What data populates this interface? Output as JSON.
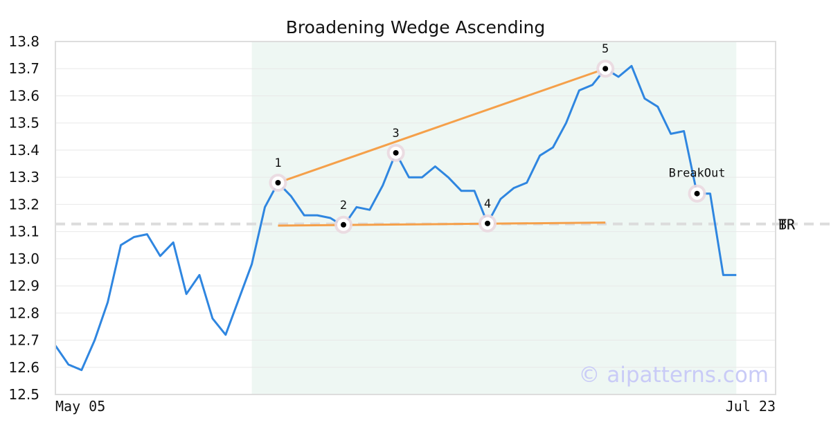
{
  "chart_data": {
    "type": "line",
    "title": "Broadening Wedge Ascending",
    "xlabel": "",
    "ylabel": "",
    "ylim": [
      12.5,
      13.8
    ],
    "yticks": [
      "12.5",
      "12.6",
      "12.7",
      "12.8",
      "12.9",
      "13.0",
      "13.1",
      "13.2",
      "13.3",
      "13.4",
      "13.5",
      "13.6",
      "13.7",
      "13.8"
    ],
    "x_tick_labels": [
      {
        "index": 0,
        "label": "May 05"
      },
      {
        "index": 54,
        "label": "Jul 23"
      }
    ],
    "x_count": 56,
    "series": [
      {
        "color": "#2f86e0",
        "values": [
          12.68,
          12.61,
          12.59,
          12.7,
          12.84,
          13.05,
          13.08,
          13.09,
          13.01,
          13.06,
          12.87,
          12.94,
          12.78,
          12.72,
          12.85,
          12.98,
          13.19,
          13.28,
          13.23,
          13.16,
          13.16,
          13.15,
          13.12,
          13.19,
          13.18,
          13.27,
          13.39,
          13.3,
          13.3,
          13.34,
          13.3,
          13.25,
          13.25,
          13.13,
          13.22,
          13.26,
          13.28,
          13.38,
          13.41,
          13.5,
          13.62,
          13.64,
          13.7,
          13.67,
          13.71,
          13.59,
          13.56,
          13.46,
          13.47,
          13.24,
          13.24,
          12.94,
          12.94
        ]
      }
    ],
    "pattern_region": {
      "x_start": 15,
      "x_end": 52,
      "color": "#eef7f3"
    },
    "pivots": [
      {
        "label": "1",
        "x": 17,
        "y": 13.28
      },
      {
        "label": "2",
        "x": 22,
        "y": 13.125
      },
      {
        "label": "3",
        "x": 26,
        "y": 13.39
      },
      {
        "label": "4",
        "x": 33,
        "y": 13.13
      },
      {
        "label": "5",
        "x": 42,
        "y": 13.7
      }
    ],
    "breakout": {
      "label": "BreakOut",
      "x": 49,
      "y": 13.24
    },
    "trendlines": [
      {
        "x1": 17,
        "y1": 13.28,
        "x2": 42,
        "y2": 13.7,
        "color": "#f5a04a"
      },
      {
        "x1": 17,
        "y1": 13.122,
        "x2": 42,
        "y2": 13.133,
        "color": "#f5a04a"
      }
    ],
    "support_resistance": {
      "y": 13.128,
      "labels": [
        "TR",
        "BR"
      ],
      "color": "#dcdcdc"
    },
    "grid": true
  },
  "watermark": "© aipatterns.com"
}
